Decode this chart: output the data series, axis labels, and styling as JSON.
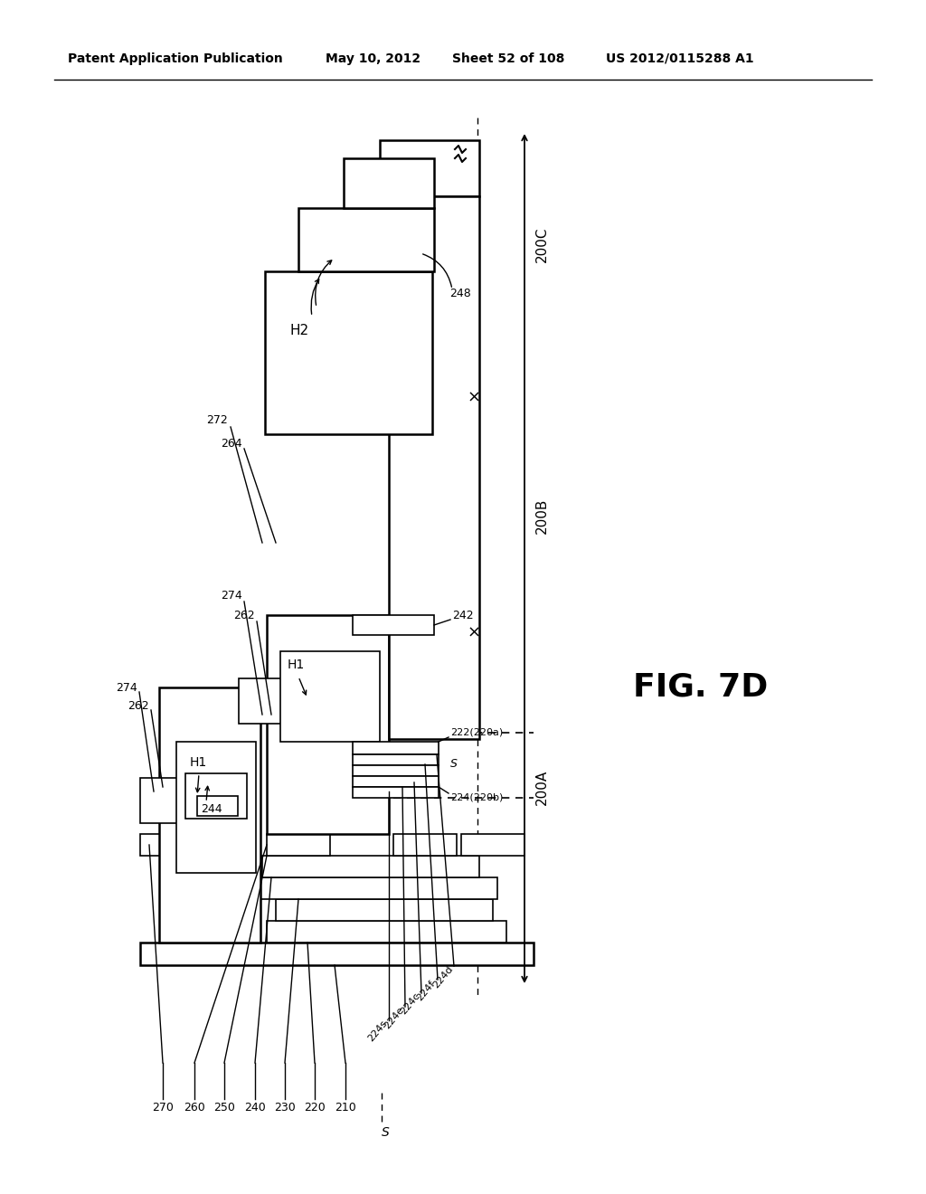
{
  "bg_color": "#ffffff",
  "header_text": "Patent Application Publication",
  "header_date": "May 10, 2012",
  "header_sheet": "Sheet 52 of 108",
  "header_patent": "US 2012/0115288 A1",
  "fig_label": "FIG. 7D",
  "title_fontsize": 11,
  "fig_label_fontsize": 22
}
